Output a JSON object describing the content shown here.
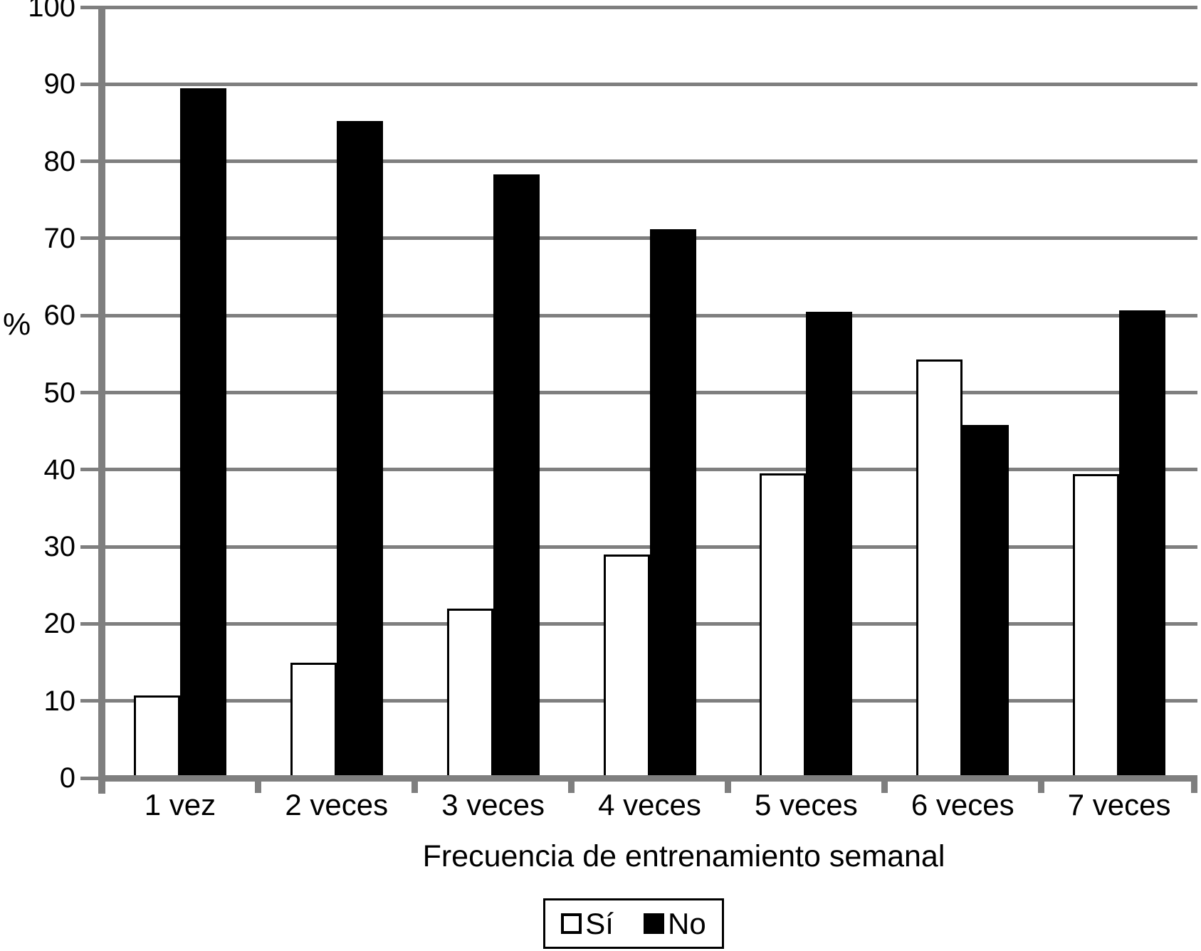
{
  "chart_data": {
    "type": "bar",
    "title": "",
    "categories": [
      "1 vez",
      "2 veces",
      "3 veces",
      "4 veces",
      "5 veces",
      "6 veces",
      "7 veces"
    ],
    "series": [
      {
        "name": "Sí",
        "fill": "#ffffff",
        "outline": "#000000",
        "values": [
          10.7,
          15,
          22,
          29,
          39.5,
          54.3,
          39.4
        ]
      },
      {
        "name": "No",
        "fill": "#000000",
        "outline": "#000000",
        "values": [
          89.5,
          85.2,
          78.3,
          71.2,
          60.5,
          45.8,
          60.7
        ]
      }
    ],
    "xlabel": "Frecuencia de entrenamiento semanal",
    "ylabel": "%",
    "ylim": [
      0,
      100
    ],
    "yticks": [
      0,
      10,
      20,
      30,
      40,
      50,
      60,
      70,
      80,
      90,
      100
    ],
    "grid": true,
    "legend_position": "bottom-center"
  },
  "legend": {
    "items": [
      {
        "label": "Sí",
        "swatch": "outlined-white-square"
      },
      {
        "label": "No",
        "swatch": "filled-black-square"
      }
    ]
  },
  "colors": {
    "grid": "#7f7f7f",
    "axis": "#7f7f7f",
    "background": "#ffffff",
    "bar_outline": "#000000",
    "text": "#000000"
  }
}
